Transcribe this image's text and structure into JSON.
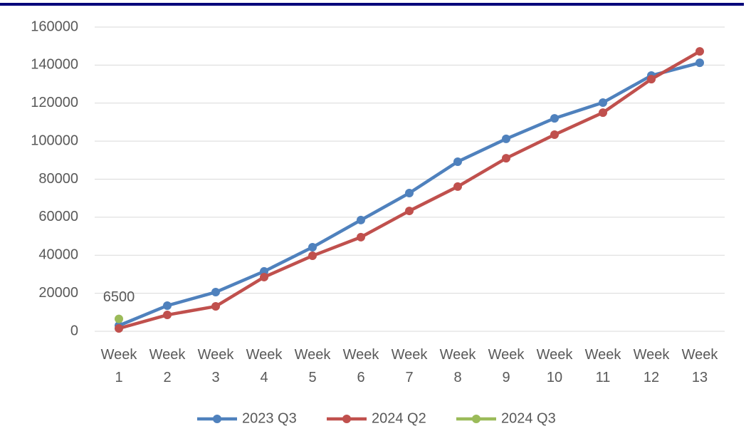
{
  "chart_data": {
    "type": "line",
    "categories": [
      "Week 1",
      "Week 2",
      "Week 3",
      "Week 4",
      "Week 5",
      "Week 6",
      "Week 7",
      "Week 8",
      "Week 9",
      "Week 10",
      "Week 11",
      "Week 12",
      "Week 13"
    ],
    "series": [
      {
        "name": "2023 Q3",
        "color": "#4f81bd",
        "values": [
          3000,
          13500,
          20600,
          31500,
          44200,
          58500,
          72700,
          89200,
          101200,
          112000,
          120300,
          134500,
          141200
        ]
      },
      {
        "name": "2024 Q2",
        "color": "#c0504d",
        "values": [
          1500,
          8600,
          13100,
          28500,
          39700,
          49500,
          63300,
          76100,
          91000,
          103400,
          115000,
          132600,
          147200
        ]
      },
      {
        "name": "2024 Q3",
        "color": "#9bbb59",
        "values": [
          6500,
          null,
          null,
          null,
          null,
          null,
          null,
          null,
          null,
          null,
          null,
          null,
          null
        ],
        "data_labels": true
      }
    ],
    "ylim": [
      0,
      160000
    ],
    "yticks": [
      0,
      20000,
      40000,
      60000,
      80000,
      100000,
      120000,
      140000,
      160000
    ],
    "grid": true,
    "legend": "bottom"
  }
}
